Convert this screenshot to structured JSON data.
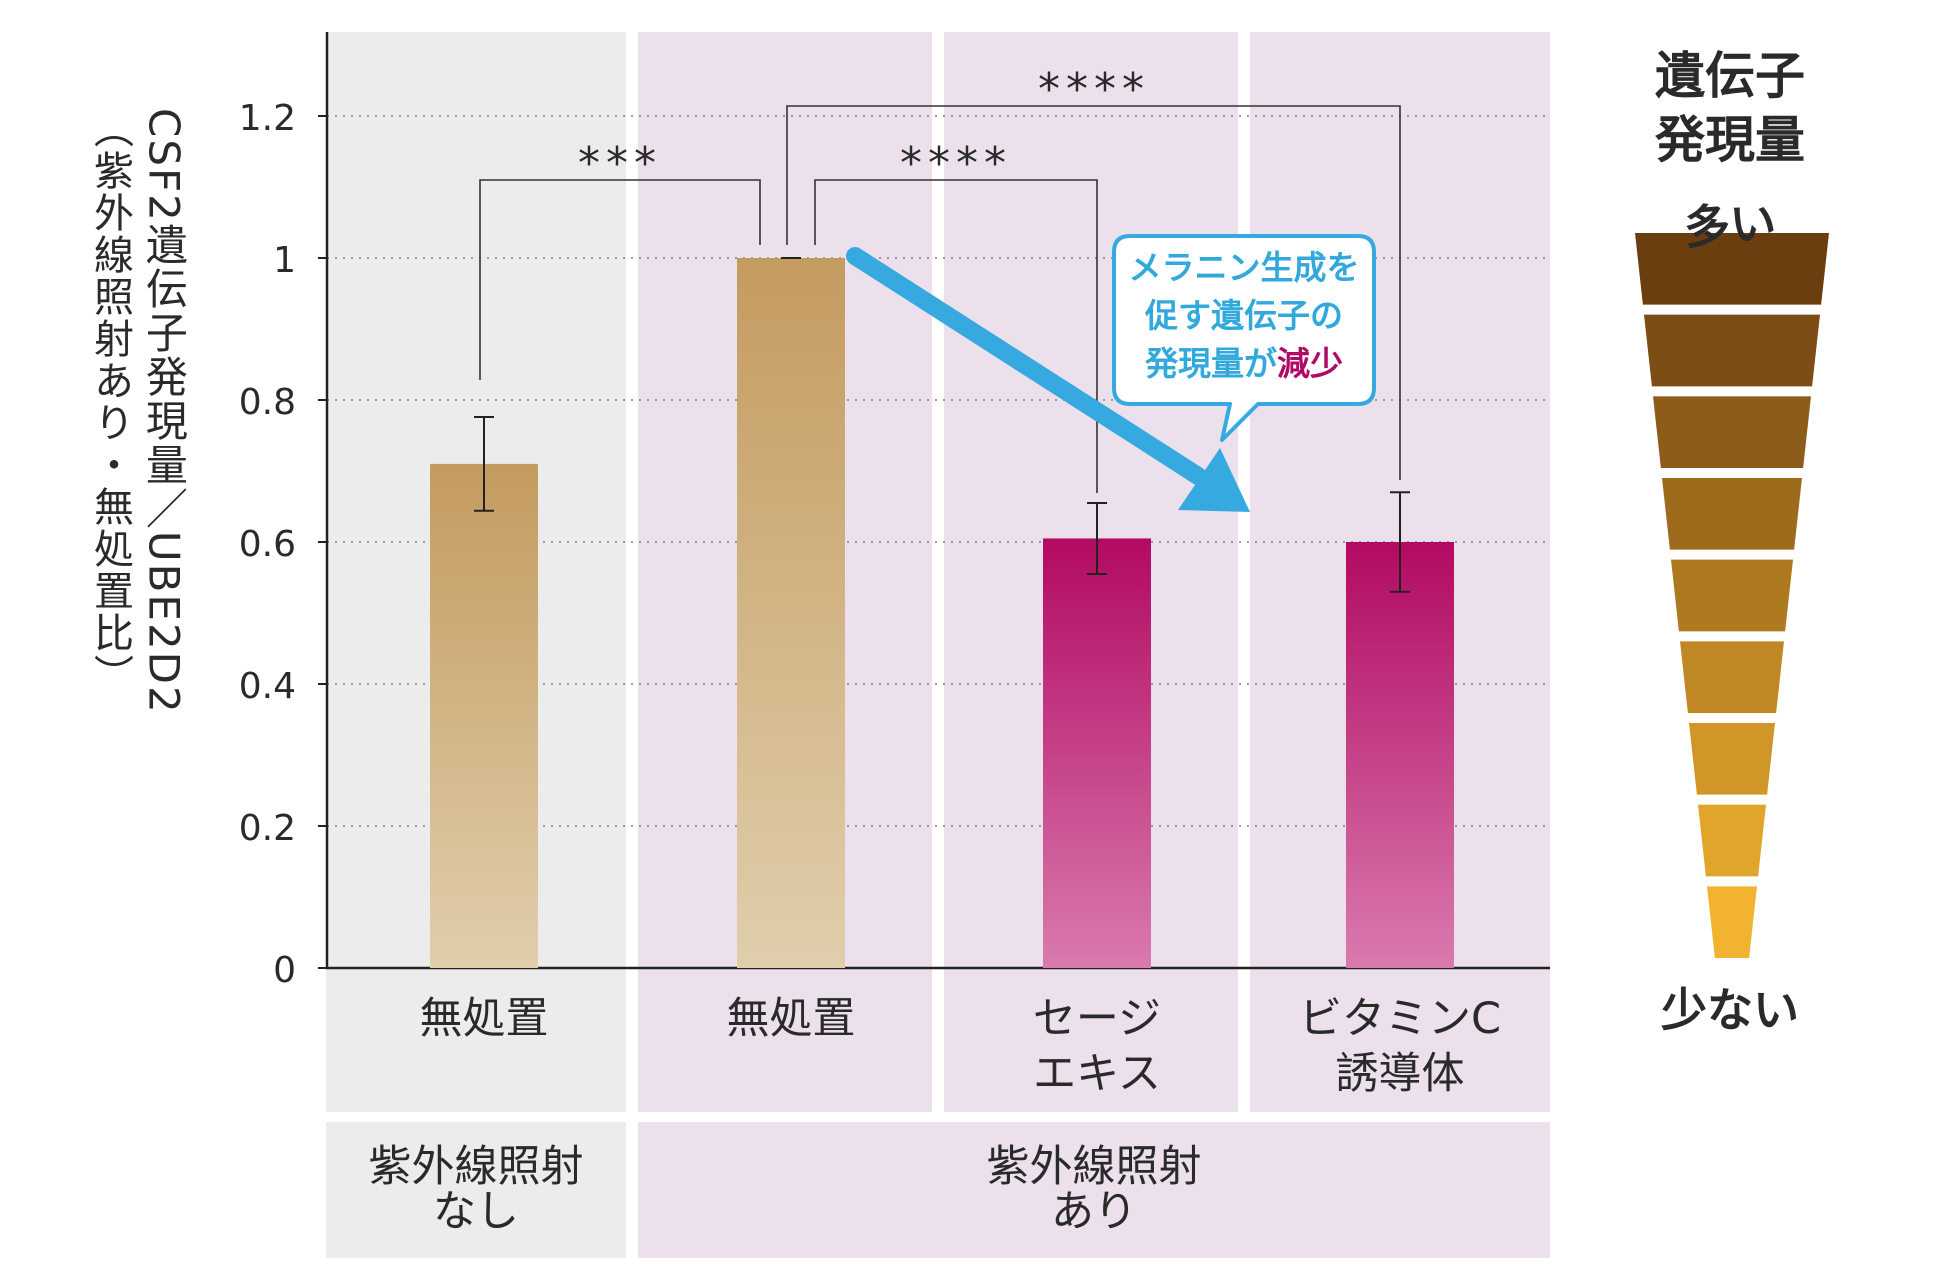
{
  "chart_data": {
    "type": "bar",
    "ylabel_line1": "CSF2遺伝子発現量／UBE2D2",
    "ylabel_line2": "（紫外線照射あり・無処置比）",
    "ylim": [
      0,
      1.3
    ],
    "yticks": [
      "0",
      "0.2",
      "0.4",
      "0.6",
      "0.8",
      "1",
      "1.2"
    ],
    "ytick_values": [
      0,
      0.2,
      0.4,
      0.6,
      0.8,
      1.0,
      1.2
    ],
    "grid": true,
    "categories": [
      [
        "無処置"
      ],
      [
        "無処置"
      ],
      [
        "セージ",
        "エキス"
      ],
      [
        "ビタミンC",
        "誘導体"
      ]
    ],
    "values": [
      0.71,
      1.0,
      0.605,
      0.6
    ],
    "errors": [
      0.066,
      0.0,
      0.05,
      0.07
    ],
    "bar_colors": [
      "#c9a264",
      "#c9a264",
      "#b5095f",
      "#b5095f"
    ],
    "groups": [
      {
        "label": [
          "紫外線照射",
          "なし"
        ],
        "categories": [
          0
        ]
      },
      {
        "label": [
          "紫外線照射",
          "あり"
        ],
        "categories": [
          1,
          2,
          3
        ]
      }
    ],
    "significance": [
      {
        "from": 0,
        "to": 1,
        "label": "***"
      },
      {
        "from": 1,
        "to": 2,
        "label": "****"
      },
      {
        "from": 1,
        "to": 3,
        "label": "****"
      }
    ]
  },
  "callout": {
    "line1": "メラニン生成を",
    "line2": "促す遺伝子の",
    "line3_prefix": "発現量が",
    "line3_emphasis": "減少"
  },
  "legend": {
    "title_line1": "遺伝子",
    "title_line2": "発現量",
    "top_label": "多い",
    "bottom_label": "少ない"
  },
  "colors": {
    "gold": "#c9a264",
    "magenta": "#b5095f",
    "arrow": "#36a9e1",
    "panel_gray": "#ececec",
    "panel_purple": "#ebe0eb"
  }
}
